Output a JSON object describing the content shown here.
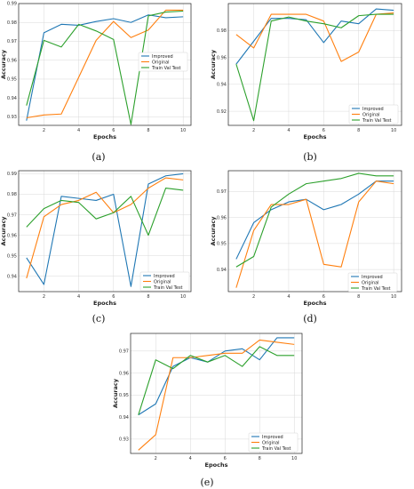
{
  "colors": {
    "Improved": "#1f77b4",
    "Original": "#ff7f0e",
    "Train Val Test": "#2ca02c"
  },
  "chart_data": [
    {
      "type": "line",
      "caption": "(a)",
      "xlabel": "Epochs",
      "ylabel": "Accuracy",
      "xlim": [
        0.55,
        10.45
      ],
      "ylim": [
        0.9255,
        0.99
      ],
      "xticks": [
        2,
        4,
        6,
        8,
        10
      ],
      "yticks": [
        "0.93",
        "0.94",
        "0.95",
        "0.96",
        "0.97",
        "0.98",
        "0.99"
      ],
      "ytick_values": [
        0.93,
        0.94,
        0.95,
        0.96,
        0.97,
        0.98,
        0.99
      ],
      "grid": true,
      "legend": "center-right",
      "x": [
        1,
        2,
        3,
        4,
        5,
        6,
        7,
        8,
        9,
        10
      ],
      "series": [
        {
          "name": "Improved",
          "values": [
            0.928,
            0.9745,
            0.979,
            0.9785,
            0.9805,
            0.982,
            0.98,
            0.984,
            0.9825,
            0.983
          ]
        },
        {
          "name": "Original",
          "values": [
            0.9295,
            0.931,
            0.9315,
            0.951,
            0.9705,
            0.9805,
            0.972,
            0.976,
            0.9865,
            0.9865
          ]
        },
        {
          "name": "Train Val Test",
          "values": [
            0.936,
            0.9705,
            0.967,
            0.979,
            0.9755,
            0.971,
            0.926,
            0.9835,
            0.9855,
            0.986
          ]
        }
      ]
    },
    {
      "type": "line",
      "caption": "(b)",
      "xlabel": "Epochs",
      "ylabel": "Accuracy",
      "xlim": [
        0.55,
        10.45
      ],
      "ylim": [
        0.9095,
        1.0
      ],
      "xticks": [
        2,
        4,
        6,
        8,
        10
      ],
      "yticks": [
        "0.92",
        "0.94",
        "0.96",
        "0.98"
      ],
      "ytick_values": [
        0.92,
        0.94,
        0.96,
        0.98
      ],
      "grid": true,
      "legend": "lower-right",
      "x": [
        1,
        2,
        3,
        4,
        5,
        6,
        7,
        8,
        9,
        10
      ],
      "series": [
        {
          "name": "Improved",
          "values": [
            0.955,
            0.972,
            0.989,
            0.989,
            0.988,
            0.971,
            0.987,
            0.985,
            0.996,
            0.995
          ]
        },
        {
          "name": "Original",
          "values": [
            0.977,
            0.967,
            0.992,
            0.992,
            0.992,
            0.987,
            0.957,
            0.964,
            0.992,
            0.993
          ]
        },
        {
          "name": "Train Val Test",
          "values": [
            0.955,
            0.913,
            0.987,
            0.99,
            0.987,
            0.985,
            0.982,
            0.991,
            0.992,
            0.992
          ]
        }
      ]
    },
    {
      "type": "line",
      "caption": "(c)",
      "xlabel": "Epochs",
      "ylabel": "Accuracy",
      "xlim": [
        0.55,
        10.45
      ],
      "ylim": [
        0.9325,
        0.9915
      ],
      "xticks": [
        2,
        4,
        6,
        8,
        10
      ],
      "yticks": [
        "0.94",
        "0.95",
        "0.96",
        "0.97",
        "0.98",
        "0.99"
      ],
      "ytick_values": [
        0.94,
        0.95,
        0.96,
        0.97,
        0.98,
        0.99
      ],
      "grid": true,
      "legend": "lower-right",
      "x": [
        1,
        2,
        3,
        4,
        5,
        6,
        7,
        8,
        9,
        10
      ],
      "series": [
        {
          "name": "Improved",
          "values": [
            0.949,
            0.936,
            0.979,
            0.978,
            0.977,
            0.98,
            0.935,
            0.985,
            0.989,
            0.99
          ]
        },
        {
          "name": "Original",
          "values": [
            0.939,
            0.969,
            0.975,
            0.977,
            0.981,
            0.971,
            0.975,
            0.983,
            0.988,
            0.987
          ]
        },
        {
          "name": "Train Val Test",
          "values": [
            0.964,
            0.973,
            0.977,
            0.976,
            0.968,
            0.971,
            0.979,
            0.96,
            0.983,
            0.982
          ]
        }
      ]
    },
    {
      "type": "line",
      "caption": "(d)",
      "xlabel": "Epochs",
      "ylabel": "Accuracy",
      "xlim": [
        0.55,
        10.45
      ],
      "ylim": [
        0.9315,
        0.978
      ],
      "xticks": [
        2,
        4,
        6,
        8,
        10
      ],
      "yticks": [
        "0.94",
        "0.95",
        "0.96",
        "0.97"
      ],
      "ytick_values": [
        0.94,
        0.95,
        0.96,
        0.97
      ],
      "grid": true,
      "legend": "lower-right",
      "x": [
        1,
        2,
        3,
        4,
        5,
        6,
        7,
        8,
        9,
        10
      ],
      "series": [
        {
          "name": "Improved",
          "values": [
            0.944,
            0.958,
            0.963,
            0.966,
            0.967,
            0.963,
            0.965,
            0.969,
            0.974,
            0.974
          ]
        },
        {
          "name": "Original",
          "values": [
            0.933,
            0.955,
            0.965,
            0.965,
            0.967,
            0.942,
            0.941,
            0.966,
            0.974,
            0.973
          ]
        },
        {
          "name": "Train Val Test",
          "values": [
            0.941,
            0.945,
            0.964,
            0.969,
            0.973,
            0.974,
            0.975,
            0.977,
            0.976,
            0.976
          ]
        }
      ]
    },
    {
      "type": "line",
      "caption": "(e)",
      "xlabel": "Epochs",
      "ylabel": "Accuracy",
      "xlim": [
        0.55,
        10.45
      ],
      "ylim": [
        0.9235,
        0.978
      ],
      "xticks": [
        2,
        4,
        6,
        8,
        10
      ],
      "yticks": [
        "0.93",
        "0.94",
        "0.95",
        "0.96",
        "0.97"
      ],
      "ytick_values": [
        0.93,
        0.94,
        0.95,
        0.96,
        0.97
      ],
      "grid": true,
      "legend": "lower-right",
      "x": [
        1,
        2,
        3,
        4,
        5,
        6,
        7,
        8,
        9,
        10
      ],
      "series": [
        {
          "name": "Improved",
          "values": [
            0.941,
            0.946,
            0.963,
            0.967,
            0.965,
            0.97,
            0.971,
            0.966,
            0.976,
            0.976
          ]
        },
        {
          "name": "Original",
          "values": [
            0.925,
            0.932,
            0.967,
            0.967,
            0.968,
            0.969,
            0.969,
            0.975,
            0.974,
            0.973
          ]
        },
        {
          "name": "Train Val Test",
          "values": [
            0.941,
            0.966,
            0.962,
            0.968,
            0.965,
            0.968,
            0.963,
            0.972,
            0.968,
            0.968
          ]
        }
      ]
    }
  ]
}
